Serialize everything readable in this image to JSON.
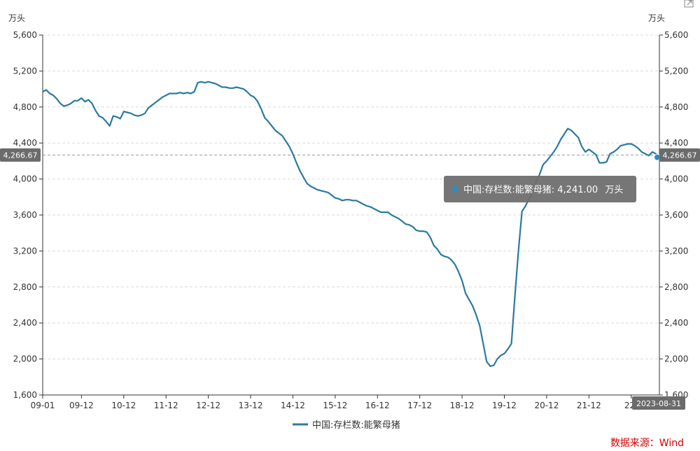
{
  "chart_data": {
    "type": "line",
    "y_unit_left": "万头",
    "y_unit_right": "万头",
    "ylim": [
      1600,
      5600
    ],
    "yticks": [
      1600,
      2000,
      2400,
      2800,
      3200,
      3600,
      4000,
      4400,
      4800,
      5200,
      5600
    ],
    "ytick_labels": [
      "1,600",
      "2,000",
      "2,400",
      "2,800",
      "3,200",
      "3,600",
      "4,000",
      "4,400",
      "4,800",
      "5,200",
      "5,600"
    ],
    "xticks": [
      "2009-01",
      "2009-12",
      "2010-12",
      "2011-12",
      "2012-12",
      "2013-12",
      "2014-12",
      "2015-12",
      "2016-12",
      "2017-12",
      "2018-12",
      "2019-12",
      "2020-12",
      "2021-12",
      "2022-12"
    ],
    "xtick_labels": [
      "09-01",
      "09-12",
      "10-12",
      "11-12",
      "12-12",
      "13-12",
      "14-12",
      "15-12",
      "16-12",
      "17-12",
      "18-12",
      "19-12",
      "20-12",
      "21-12",
      "22-"
    ],
    "x_end": "2023-08",
    "series": [
      {
        "name": "中国:存栏数:能繁母猪",
        "color": "#2b7aa0",
        "points": [
          [
            "2009-01",
            4970
          ],
          [
            "2009-02",
            4990
          ],
          [
            "2009-03",
            4950
          ],
          [
            "2009-04",
            4930
          ],
          [
            "2009-05",
            4890
          ],
          [
            "2009-06",
            4840
          ],
          [
            "2009-07",
            4810
          ],
          [
            "2009-08",
            4820
          ],
          [
            "2009-09",
            4840
          ],
          [
            "2009-10",
            4870
          ],
          [
            "2009-11",
            4870
          ],
          [
            "2009-12",
            4900
          ],
          [
            "2010-01",
            4860
          ],
          [
            "2010-02",
            4880
          ],
          [
            "2010-03",
            4840
          ],
          [
            "2010-04",
            4760
          ],
          [
            "2010-05",
            4700
          ],
          [
            "2010-06",
            4680
          ],
          [
            "2010-07",
            4640
          ],
          [
            "2010-08",
            4590
          ],
          [
            "2010-09",
            4700
          ],
          [
            "2010-10",
            4690
          ],
          [
            "2010-11",
            4670
          ],
          [
            "2010-12",
            4750
          ],
          [
            "2011-01",
            4740
          ],
          [
            "2011-02",
            4730
          ],
          [
            "2011-03",
            4710
          ],
          [
            "2011-04",
            4700
          ],
          [
            "2011-05",
            4710
          ],
          [
            "2011-06",
            4730
          ],
          [
            "2011-07",
            4790
          ],
          [
            "2011-08",
            4820
          ],
          [
            "2011-09",
            4850
          ],
          [
            "2011-10",
            4880
          ],
          [
            "2011-11",
            4910
          ],
          [
            "2011-12",
            4930
          ],
          [
            "2012-01",
            4950
          ],
          [
            "2012-02",
            4950
          ],
          [
            "2012-03",
            4950
          ],
          [
            "2012-04",
            4960
          ],
          [
            "2012-05",
            4950
          ],
          [
            "2012-06",
            4960
          ],
          [
            "2012-07",
            4950
          ],
          [
            "2012-08",
            4970
          ],
          [
            "2012-09",
            5070
          ],
          [
            "2012-10",
            5080
          ],
          [
            "2012-11",
            5070
          ],
          [
            "2012-12",
            5080
          ],
          [
            "2013-01",
            5070
          ],
          [
            "2013-02",
            5060
          ],
          [
            "2013-03",
            5040
          ],
          [
            "2013-04",
            5020
          ],
          [
            "2013-05",
            5020
          ],
          [
            "2013-06",
            5010
          ],
          [
            "2013-07",
            5010
          ],
          [
            "2013-08",
            5020
          ],
          [
            "2013-09",
            5010
          ],
          [
            "2013-10",
            5000
          ],
          [
            "2013-11",
            4970
          ],
          [
            "2013-12",
            4930
          ],
          [
            "2014-01",
            4910
          ],
          [
            "2014-02",
            4860
          ],
          [
            "2014-03",
            4780
          ],
          [
            "2014-04",
            4680
          ],
          [
            "2014-05",
            4640
          ],
          [
            "2014-06",
            4590
          ],
          [
            "2014-07",
            4540
          ],
          [
            "2014-08",
            4510
          ],
          [
            "2014-09",
            4480
          ],
          [
            "2014-10",
            4420
          ],
          [
            "2014-11",
            4360
          ],
          [
            "2014-12",
            4280
          ],
          [
            "2015-01",
            4180
          ],
          [
            "2015-02",
            4090
          ],
          [
            "2015-03",
            4020
          ],
          [
            "2015-04",
            3950
          ],
          [
            "2015-05",
            3920
          ],
          [
            "2015-06",
            3900
          ],
          [
            "2015-07",
            3880
          ],
          [
            "2015-08",
            3870
          ],
          [
            "2015-09",
            3860
          ],
          [
            "2015-10",
            3850
          ],
          [
            "2015-11",
            3820
          ],
          [
            "2015-12",
            3790
          ],
          [
            "2016-01",
            3780
          ],
          [
            "2016-02",
            3760
          ],
          [
            "2016-03",
            3770
          ],
          [
            "2016-04",
            3770
          ],
          [
            "2016-05",
            3760
          ],
          [
            "2016-06",
            3760
          ],
          [
            "2016-07",
            3740
          ],
          [
            "2016-08",
            3720
          ],
          [
            "2016-09",
            3700
          ],
          [
            "2016-10",
            3690
          ],
          [
            "2016-11",
            3670
          ],
          [
            "2016-12",
            3650
          ],
          [
            "2017-01",
            3630
          ],
          [
            "2017-02",
            3630
          ],
          [
            "2017-03",
            3630
          ],
          [
            "2017-04",
            3600
          ],
          [
            "2017-05",
            3580
          ],
          [
            "2017-06",
            3560
          ],
          [
            "2017-07",
            3530
          ],
          [
            "2017-08",
            3500
          ],
          [
            "2017-09",
            3490
          ],
          [
            "2017-10",
            3470
          ],
          [
            "2017-11",
            3430
          ],
          [
            "2017-12",
            3420
          ],
          [
            "2018-01",
            3420
          ],
          [
            "2018-02",
            3410
          ],
          [
            "2018-03",
            3350
          ],
          [
            "2018-04",
            3260
          ],
          [
            "2018-05",
            3220
          ],
          [
            "2018-06",
            3160
          ],
          [
            "2018-07",
            3140
          ],
          [
            "2018-08",
            3130
          ],
          [
            "2018-09",
            3100
          ],
          [
            "2018-10",
            3050
          ],
          [
            "2018-11",
            2970
          ],
          [
            "2018-12",
            2870
          ],
          [
            "2019-01",
            2730
          ],
          [
            "2019-02",
            2660
          ],
          [
            "2019-03",
            2590
          ],
          [
            "2019-04",
            2490
          ],
          [
            "2019-05",
            2370
          ],
          [
            "2019-06",
            2170
          ],
          [
            "2019-07",
            1970
          ],
          [
            "2019-08",
            1920
          ],
          [
            "2019-09",
            1930
          ],
          [
            "2019-10",
            2000
          ],
          [
            "2019-11",
            2040
          ],
          [
            "2019-12",
            2060
          ],
          [
            "2020-01",
            2110
          ],
          [
            "2020-02",
            2170
          ],
          [
            "2020-03",
            2700
          ],
          [
            "2020-04",
            3200
          ],
          [
            "2020-05",
            3640
          ],
          [
            "2020-06",
            3700
          ],
          [
            "2020-07",
            3780
          ],
          [
            "2020-08",
            3840
          ],
          [
            "2020-09",
            3970
          ],
          [
            "2020-10",
            4050
          ],
          [
            "2020-11",
            4160
          ],
          [
            "2020-12",
            4200
          ],
          [
            "2021-01",
            4250
          ],
          [
            "2021-02",
            4300
          ],
          [
            "2021-03",
            4360
          ],
          [
            "2021-04",
            4440
          ],
          [
            "2021-05",
            4500
          ],
          [
            "2021-06",
            4560
          ],
          [
            "2021-07",
            4540
          ],
          [
            "2021-08",
            4500
          ],
          [
            "2021-09",
            4460
          ],
          [
            "2021-10",
            4360
          ],
          [
            "2021-11",
            4300
          ],
          [
            "2021-12",
            4330
          ],
          [
            "2022-01",
            4300
          ],
          [
            "2022-02",
            4270
          ],
          [
            "2022-03",
            4180
          ],
          [
            "2022-04",
            4180
          ],
          [
            "2022-05",
            4190
          ],
          [
            "2022-06",
            4280
          ],
          [
            "2022-07",
            4300
          ],
          [
            "2022-08",
            4330
          ],
          [
            "2022-09",
            4370
          ],
          [
            "2022-10",
            4380
          ],
          [
            "2022-11",
            4390
          ],
          [
            "2022-12",
            4390
          ],
          [
            "2023-01",
            4370
          ],
          [
            "2023-02",
            4340
          ],
          [
            "2023-03",
            4300
          ],
          [
            "2023-04",
            4280
          ],
          [
            "2023-05",
            4260
          ],
          [
            "2023-06",
            4300
          ],
          [
            "2023-07",
            4280
          ],
          [
            "2023-08",
            4241
          ]
        ]
      }
    ],
    "legend_position": "bottom-center",
    "grid": true,
    "crosshair": {
      "y_value": 4266.67,
      "label": "4,266.67"
    },
    "end_label": "2023-08-31",
    "tooltip": {
      "series_name": "中国:存栏数:能繁母猪",
      "value": "4,241.00",
      "unit": "万头",
      "at": "2023-08"
    },
    "source": "数据来源：Wind"
  }
}
